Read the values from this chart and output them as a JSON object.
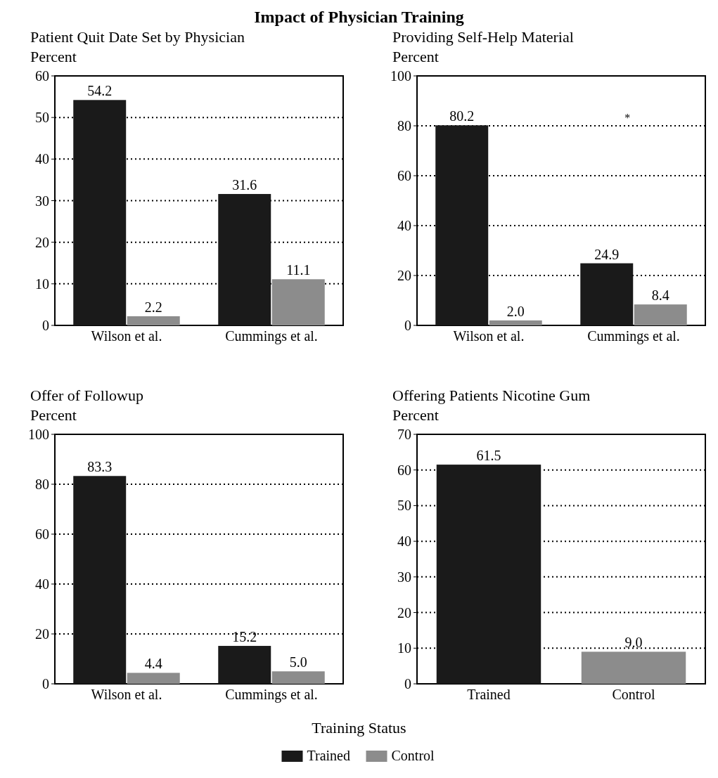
{
  "chart_data": [
    {
      "type": "bar",
      "title": "Patient Quit Date Set by Physician",
      "ylabel": "Percent",
      "annotations": [
        "Impact of Physician Training"
      ],
      "categories": [
        "Wilson et al.",
        "Cummings et al."
      ],
      "series": [
        {
          "name": "Trained",
          "color": "#1a1a1a",
          "values": [
            54.2,
            31.6
          ],
          "value_labels": [
            "54.2",
            "31.6"
          ]
        },
        {
          "name": "Control",
          "color": "#8c8c8c",
          "values": [
            2.2,
            11.1
          ],
          "value_labels": [
            "2.2",
            "11.1"
          ]
        }
      ],
      "ylim": [
        0,
        60
      ],
      "yticks": [
        0,
        10,
        20,
        30,
        40,
        50,
        60
      ],
      "grid": "y",
      "legend": "bottom"
    },
    {
      "type": "bar",
      "title": "Providing Self-Help Material",
      "ylabel": "Percent",
      "annotations": [
        "*"
      ],
      "categories": [
        "Wilson et al.",
        "Cummings et al."
      ],
      "series": [
        {
          "color": "#1a1a1a",
          "values": [
            80.2,
            24.9
          ],
          "value_labels": [
            "80.2",
            "24.9"
          ]
        },
        {
          "color": "#8c8c8c",
          "values": [
            2.0,
            8.4
          ],
          "value_labels": [
            "2.0",
            "8.4"
          ]
        }
      ],
      "ylim": [
        0,
        100
      ],
      "yticks": [
        0,
        20,
        40,
        60,
        80,
        100
      ],
      "grid": "y"
    },
    {
      "type": "bar",
      "title": "Offer of Followup",
      "ylabel": "Percent",
      "categories": [
        "Wilson et al.",
        "Cummings et al."
      ],
      "series": [
        {
          "color": "#1a1a1a",
          "values": [
            83.3,
            15.2
          ],
          "value_labels": [
            "83.3",
            "15.2"
          ]
        },
        {
          "color": "#8c8c8c",
          "values": [
            4.4,
            5.0
          ],
          "value_labels": [
            "4.4",
            "5.0"
          ]
        }
      ],
      "ylim": [
        0,
        100
      ],
      "yticks": [
        0,
        20,
        40,
        60,
        80,
        100
      ],
      "grid": "y"
    },
    {
      "type": "bar",
      "title": "Offering Patients Nicotine Gum",
      "ylabel": "Percent",
      "xlabel": "Training Status",
      "categories": [
        "Trained",
        "Control"
      ],
      "series": [
        {
          "colors": [
            "#1a1a1a",
            "#8c8c8c"
          ],
          "values": [
            61.5,
            9.0
          ],
          "value_labels": [
            "61.5",
            "9.0"
          ]
        }
      ],
      "ylim": [
        0,
        70
      ],
      "yticks": [
        0,
        10,
        20,
        30,
        40,
        50,
        60,
        70
      ],
      "grid": "y"
    }
  ]
}
